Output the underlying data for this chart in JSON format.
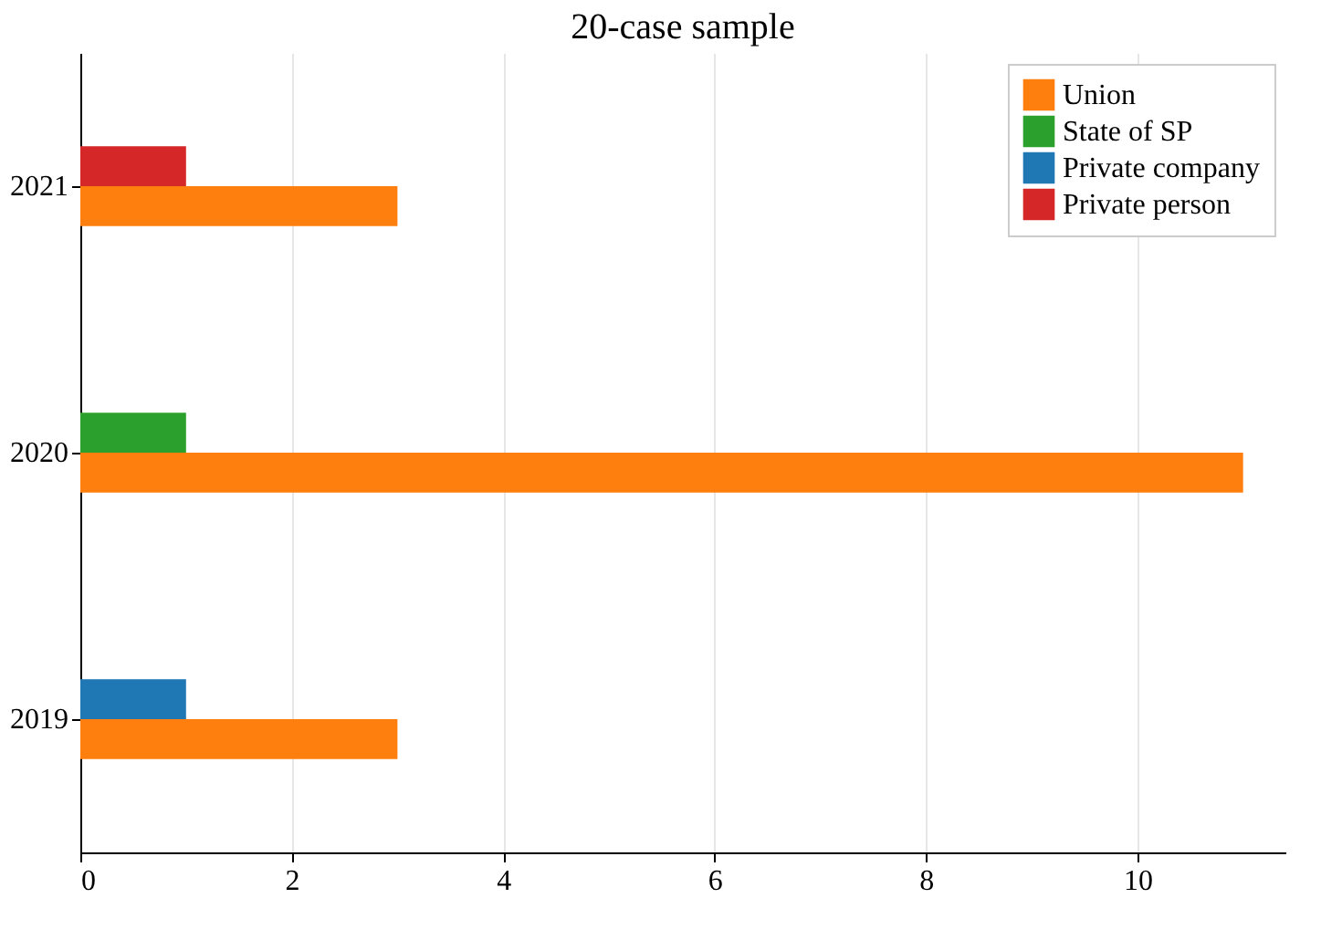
{
  "chart_data": {
    "type": "bar",
    "orientation": "horizontal",
    "title": "20-case sample",
    "categories": [
      "2021",
      "2020",
      "2019"
    ],
    "series": [
      {
        "name": "Union",
        "color": "#ff7f0e",
        "values": [
          3,
          11,
          3
        ]
      },
      {
        "name": "State of SP",
        "color": "#2ca02c",
        "values": [
          null,
          1,
          null
        ]
      },
      {
        "name": "Private company",
        "color": "#1f77b4",
        "values": [
          null,
          null,
          1
        ]
      },
      {
        "name": "Private person",
        "color": "#d62728",
        "values": [
          1,
          null,
          null
        ]
      }
    ],
    "xlim": [
      0,
      11.4
    ],
    "xticks": [
      0,
      2,
      4,
      6,
      8,
      10
    ],
    "grid": "x",
    "legend": "top right"
  }
}
